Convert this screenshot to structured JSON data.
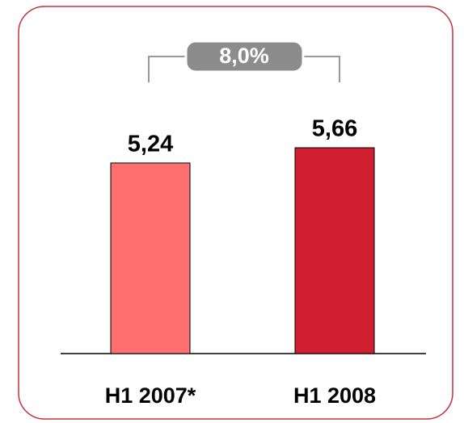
{
  "chart_data": {
    "type": "bar",
    "categories": [
      "H1 2007*",
      "H1 2008"
    ],
    "values": [
      5.24,
      5.66
    ],
    "value_labels": [
      "5,24",
      "5,66"
    ],
    "colors": [
      "#fe7070",
      "#cf1f30"
    ],
    "annotation": "8,0%"
  }
}
